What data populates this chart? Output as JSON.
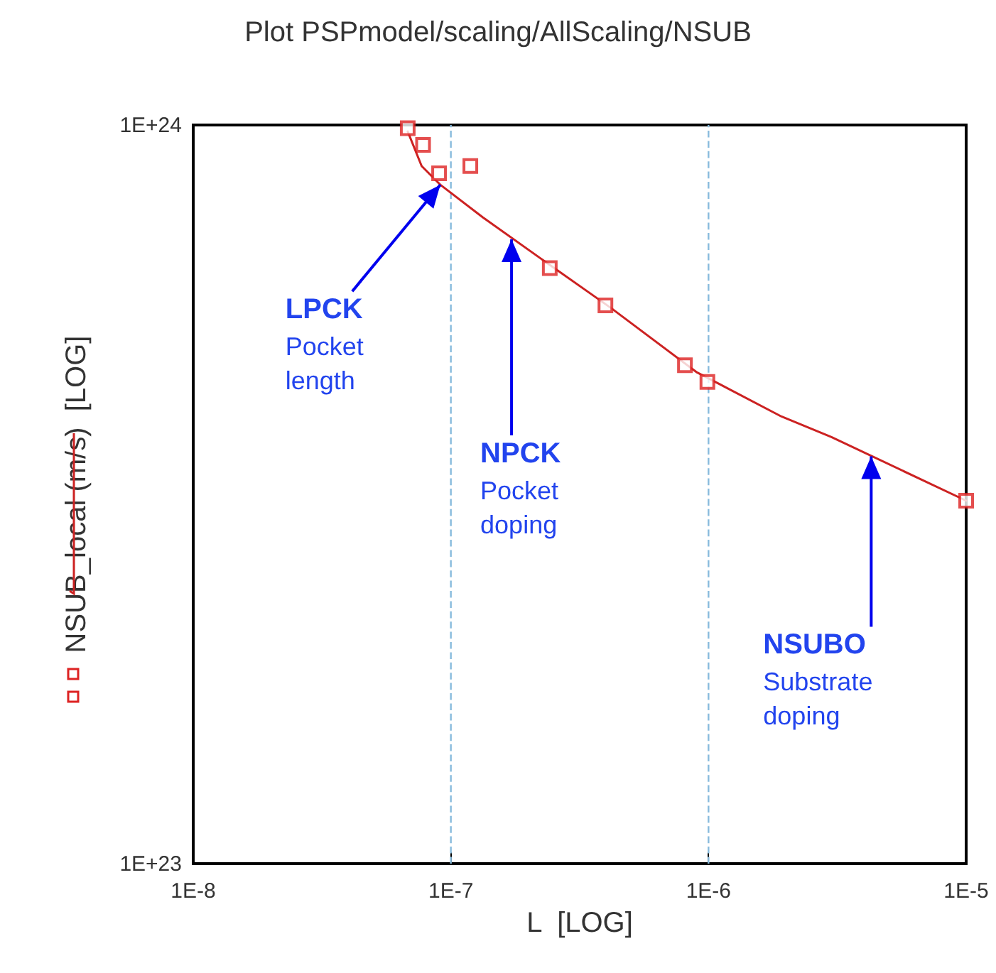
{
  "chart_data": {
    "type": "scatter",
    "title": "Plot PSPmodel/scaling/AllScaling/NSUB",
    "xlabel": "L  [LOG]",
    "ylabel": "NSUB_local (m/s)  [LOG]",
    "log": "xy",
    "xlim": [
      1e-08,
      1e-05
    ],
    "ylim": [
      1e+23,
      1e+24
    ],
    "xticks": [
      {
        "value": 1e-08,
        "label": "1E-8"
      },
      {
        "value": 1e-07,
        "label": "1E-7"
      },
      {
        "value": 1e-06,
        "label": "1E-6"
      },
      {
        "value": 1e-05,
        "label": "1E-5"
      }
    ],
    "yticks": [
      {
        "value": 1e+23,
        "label": "1E+23"
      },
      {
        "value": 1e+24,
        "label": "1E+24"
      }
    ],
    "grid": false,
    "series": [
      {
        "type": "scatter",
        "marker": "square",
        "color": "#dd2222",
        "x": [
          6.8e-08,
          7.8e-08,
          9e-08,
          1.19e-07,
          2.42e-07,
          3.98e-07,
          8.1e-07,
          9.9e-07,
          1e-05
        ],
        "values": [
          9.9e+23,
          9.4e+23,
          8.6e+23,
          8.8e+23,
          6.4e+23,
          5.7e+23,
          4.73e+23,
          4.49e+23,
          3.1e+23
        ]
      },
      {
        "type": "line",
        "marker": "none",
        "line_style": "solid",
        "color": "#cc2222",
        "x": [
          6.8e-08,
          7.7e-08,
          9.1e-08,
          1.33e-07,
          2.52e-07,
          4.19e-07,
          8.97e-07,
          1.92e-06,
          3e-06,
          1e-05
        ],
        "values": [
          9.8e+23,
          8.8e+23,
          8.3e+23,
          7.5e+23,
          6.4e+23,
          5.65e+23,
          4.63e+23,
          4.03e+23,
          3.78e+23,
          3.1e+23
        ]
      }
    ],
    "ref_lines": [
      {
        "axis": "x",
        "value": 1e-07,
        "color": "#88bbdd",
        "line_style": "dashed"
      },
      {
        "axis": "x",
        "value": 1e-06,
        "color": "#88bbdd",
        "line_style": "dashed"
      }
    ],
    "annotations": [
      {
        "text": "LPCK\nPocket\nlength",
        "x": 9.1e-08,
        "y": 8.3e+23
      },
      {
        "text": "NPCK\nPocket\ndoping",
        "x": 1.72e-07,
        "y": 7e+23
      },
      {
        "text": "NSUBO\nSubstrate\ndoping",
        "x": 4.28e-06,
        "y": 3.56e+23
      }
    ]
  }
}
